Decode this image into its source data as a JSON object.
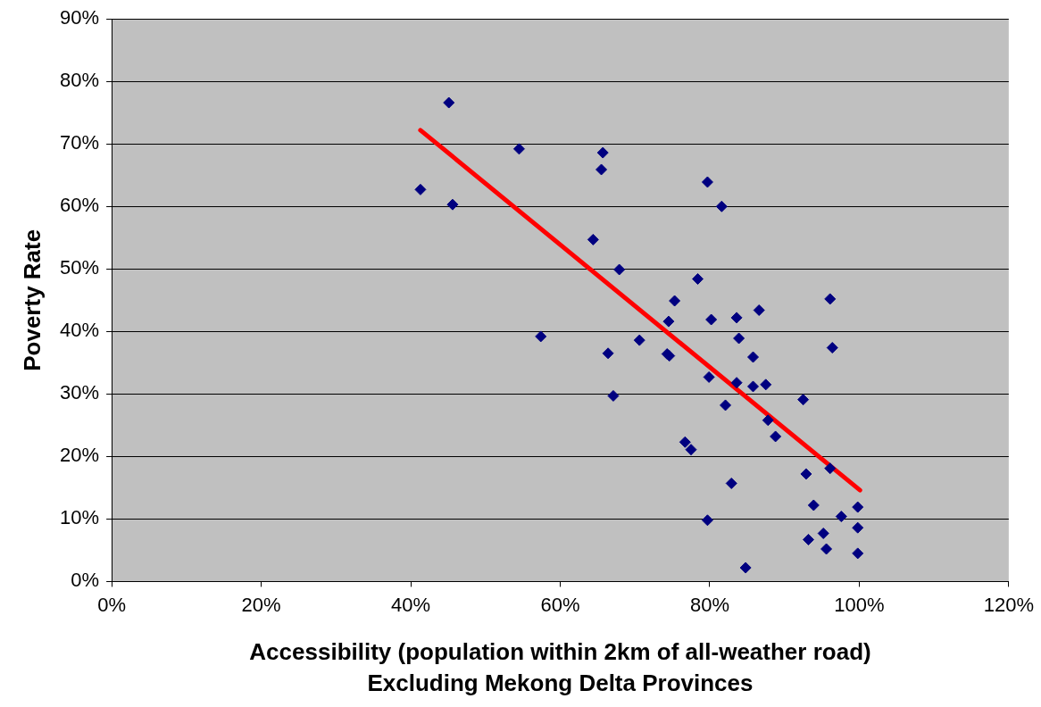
{
  "chart_data": {
    "type": "scatter",
    "xlabel": "Accessibility (population within 2km of all-weather road)\nExcluding Mekong Delta Provinces",
    "ylabel": "Poverty Rate",
    "x": [
      41.3,
      45.1,
      45.6,
      54.5,
      57.4,
      64.4,
      65.7,
      65.5,
      67.9,
      66.4,
      67.1,
      70.6,
      74.5,
      74.3,
      74.6,
      75.3,
      78.4,
      79.7,
      81.6,
      80.2,
      79.9,
      76.7,
      77.5,
      79.7,
      82.1,
      83.6,
      83.9,
      83.6,
      82.9,
      84.8,
      85.8,
      85.8,
      86.6,
      87.5,
      87.8,
      88.8,
      92.5,
      92.9,
      93.2,
      93.9,
      95.2,
      95.6,
      96.1,
      96.4,
      96.1,
      97.6,
      99.8,
      99.8,
      99.8
    ],
    "series": [
      {
        "color": "#000080",
        "marker": "diamond",
        "values": [
          62.7,
          76.6,
          60.3,
          69.2,
          39.2,
          54.7,
          68.6,
          65.9,
          49.9,
          36.5,
          29.7,
          38.6,
          41.6,
          36.4,
          36.1,
          44.9,
          48.4,
          63.9,
          60.0,
          41.9,
          32.7,
          22.3,
          21.1,
          9.8,
          28.2,
          42.2,
          38.9,
          31.8,
          15.7,
          2.2,
          35.9,
          31.2,
          43.4,
          31.5,
          25.8,
          23.2,
          29.1,
          17.2,
          6.7,
          12.2,
          7.7,
          5.2,
          45.2,
          37.4,
          18.1,
          10.4,
          11.9,
          8.6,
          4.5
        ]
      },
      {
        "type": "line",
        "color": "#ff0000",
        "marker": "none",
        "line_style": "solid",
        "x": [
          41.3,
          100.1
        ],
        "values": [
          72.2,
          14.6
        ]
      }
    ],
    "xlim": [
      0,
      120
    ],
    "xticks": [
      {
        "value": 0,
        "label": "0%"
      },
      {
        "value": 20,
        "label": "20%"
      },
      {
        "value": 40,
        "label": "40%"
      },
      {
        "value": 60,
        "label": "60%"
      },
      {
        "value": 80,
        "label": "80%"
      },
      {
        "value": 100,
        "label": "100%"
      },
      {
        "value": 120,
        "label": "120%"
      }
    ],
    "ylim": [
      0,
      90
    ],
    "yticks": [
      {
        "value": 0,
        "label": "0%"
      },
      {
        "value": 10,
        "label": "10%"
      },
      {
        "value": 20,
        "label": "20%"
      },
      {
        "value": 30,
        "label": "30%"
      },
      {
        "value": 40,
        "label": "40%"
      },
      {
        "value": 50,
        "label": "50%"
      },
      {
        "value": 60,
        "label": "60%"
      },
      {
        "value": 70,
        "label": "70%"
      },
      {
        "value": 80,
        "label": "80%"
      },
      {
        "value": 90,
        "label": "90%"
      }
    ],
    "grid": "y",
    "legend": false
  }
}
